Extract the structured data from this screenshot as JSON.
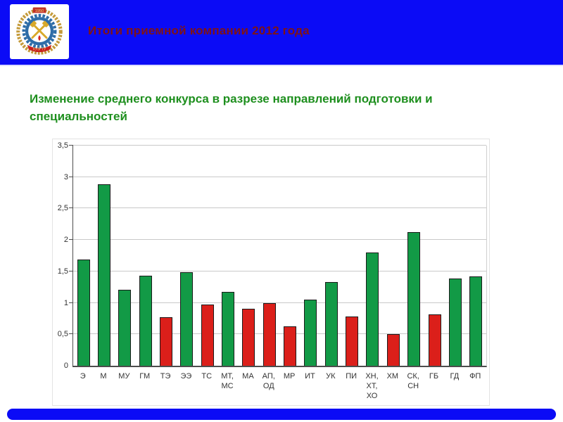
{
  "slide": {
    "header": {
      "title": "Итоги приемной компании 2012 года",
      "logo_banner_year": "1950",
      "logo_ribbon_text": "КУЗГТУ"
    },
    "subtitle": "Изменение среднего конкурса в разрезе направлений подготовки и специальностей"
  },
  "colors": {
    "header_blue": "#0B0BF6",
    "footer_blue": "#0B0BF6",
    "title_maroon": "#7E1416",
    "subtitle_green": "#1E8F1E",
    "bar_green": "#129A46",
    "bar_red": "#DB1F1A",
    "bar_outline": "#1A1A1A",
    "gridline": "#C9C9C9",
    "axis": "#4D4D4D",
    "tick_text": "#333333"
  },
  "chart_data": {
    "type": "bar",
    "title": "",
    "xlabel": "",
    "ylabel": "",
    "ylim": [
      0,
      3.5
    ],
    "grid": true,
    "legend": "none",
    "ytick_values": [
      0,
      0.5,
      1,
      1.5,
      2,
      2.5,
      3,
      3.5
    ],
    "ytick_labels": [
      "0",
      "0,5",
      "1",
      "1,5",
      "2",
      "2,5",
      "3",
      "3,5"
    ],
    "categories": [
      "Э",
      "М",
      "МУ",
      "ГМ",
      "ТЭ",
      "ЭЭ",
      "ТС",
      "МТ,\nМС",
      "МА",
      "АП,\nОД",
      "МР",
      "ИТ",
      "УК",
      "ПИ",
      "ХН,\nХТ,\nХО",
      "ХМ",
      "СК,\nСН",
      "ГБ",
      "ГД",
      "ФП"
    ],
    "values": [
      1.69,
      2.88,
      1.21,
      1.43,
      0.77,
      1.49,
      0.97,
      1.17,
      0.91,
      0.99,
      0.63,
      1.05,
      1.33,
      0.78,
      1.8,
      0.5,
      2.13,
      0.82,
      1.39,
      1.42
    ],
    "bar_color_keys": [
      "green",
      "green",
      "green",
      "green",
      "red",
      "green",
      "red",
      "green",
      "red",
      "red",
      "red",
      "green",
      "green",
      "red",
      "green",
      "red",
      "green",
      "red",
      "green",
      "green"
    ]
  }
}
